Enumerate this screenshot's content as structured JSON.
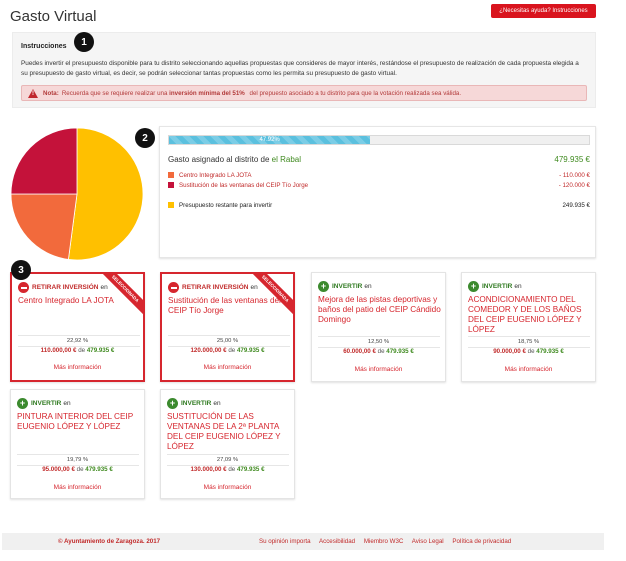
{
  "header": {
    "title": "Gasto Virtual",
    "help_label": "¿Necesitas ayuda? Instrucciones"
  },
  "markers": [
    "1",
    "2",
    "3"
  ],
  "instructions": {
    "title": "Instrucciones",
    "text": "Puedes invertir el presupuesto disponible para tu distrito seleccionando aquellas propuestas que consideres de mayor interés, restándose el presupuesto de realización de cada propuesta elegida a su presupuesto de gasto virtual, es decir, se podrán seleccionar tantas propuestas como les permita su presupuesto de gasto virtual.",
    "alert": {
      "label": "Nota:",
      "pre": "Recuerda que se requiere realizar una",
      "emphasis": "inversión mínima del 51%",
      "post": "del prepuesto asociado a tu distrito para que la votación realizada sea válida."
    }
  },
  "budget": {
    "progress_label": "47.92%",
    "progress_value": 0.4792,
    "assigned_label": "Gasto asignado al distrito",
    "assigned_prep": "de",
    "district": "el Rabal",
    "total": "479.935 €",
    "lines": [
      {
        "label": "Centro Integrado LA JOTA",
        "value": "- 110.000 €",
        "color": "#f26a3c"
      },
      {
        "label": "Sustitución de las ventanas del CEIP Tío Jorge",
        "value": "- 120.000 €",
        "color": "#c4123a"
      }
    ],
    "remaining": {
      "label": "Presupuesto restante para invertir",
      "value": "249.935 €",
      "color": "#ffc000"
    }
  },
  "chart_data": {
    "type": "pie",
    "slices": [
      {
        "name": "Centro Integrado LA JOTA",
        "value": 110000,
        "color": "#f26a3c"
      },
      {
        "name": "Sustitución de las ventanas del CEIP Tío Jorge",
        "value": 120000,
        "color": "#c4123a"
      },
      {
        "name": "Presupuesto restante para invertir",
        "value": 249935,
        "color": "#ffc000"
      }
    ]
  },
  "proposals": [
    {
      "action": "RETIRAR INVERSIÓN",
      "prep": "en",
      "title": "Centro Integrado LA JOTA",
      "pct": "22,92 %",
      "amount": "110.000,00 €",
      "of": "de",
      "total": "479.935 €",
      "more": "Más información",
      "ribbon": "SELECCIONADA"
    },
    {
      "action": "RETIRAR INVERSIÓN",
      "prep": "en",
      "title": "Sustitución de las ventanas del CEIP Tío Jorge",
      "pct": "25,00 %",
      "amount": "120.000,00 €",
      "of": "de",
      "total": "479.935 €",
      "more": "Más información",
      "ribbon": "SELECCIONADA"
    },
    {
      "action": "INVERTIR",
      "prep": "en",
      "title": "Mejora de las pistas deportivas y baños del patio del CEIP Cándido Domingo",
      "pct": "12,50 %",
      "amount": "60.000,00 €",
      "of": "de",
      "total": "479.935 €",
      "more": "Más información"
    },
    {
      "action": "INVERTIR",
      "prep": "en",
      "title": "ACONDICIONAMIENTO DEL COMEDOR Y DE LOS BAÑOS DEL CEIP EUGENIO LÓPEZ Y LÓPEZ",
      "pct": "18,75 %",
      "amount": "90.000,00 €",
      "of": "de",
      "total": "479.935 €",
      "more": "Más información"
    },
    {
      "action": "INVERTIR",
      "prep": "en",
      "title": "PINTURA INTERIOR DEL CEIP EUGENIO LÓPEZ Y LÓPEZ",
      "pct": "19,79 %",
      "amount": "95.000,00 €",
      "of": "de",
      "total": "479.935 €",
      "more": "Más información"
    },
    {
      "action": "INVERTIR",
      "prep": "en",
      "title": "SUSTITUCIÓN DE LAS VENTANAS DE LA 2ª PLANTA DEL CEIP EUGENIO LÓPEZ Y LÓPEZ",
      "pct": "27,09 %",
      "amount": "130.000,00 €",
      "of": "de",
      "total": "479.935 €",
      "more": "Más información"
    }
  ],
  "footer": {
    "copyright": "© Ayuntamiento de Zaragoza. 2017",
    "links": [
      "Su opinión importa",
      "Accesibilidad",
      "Miembro W3C",
      "Aviso Legal",
      "Política de privacidad"
    ]
  }
}
